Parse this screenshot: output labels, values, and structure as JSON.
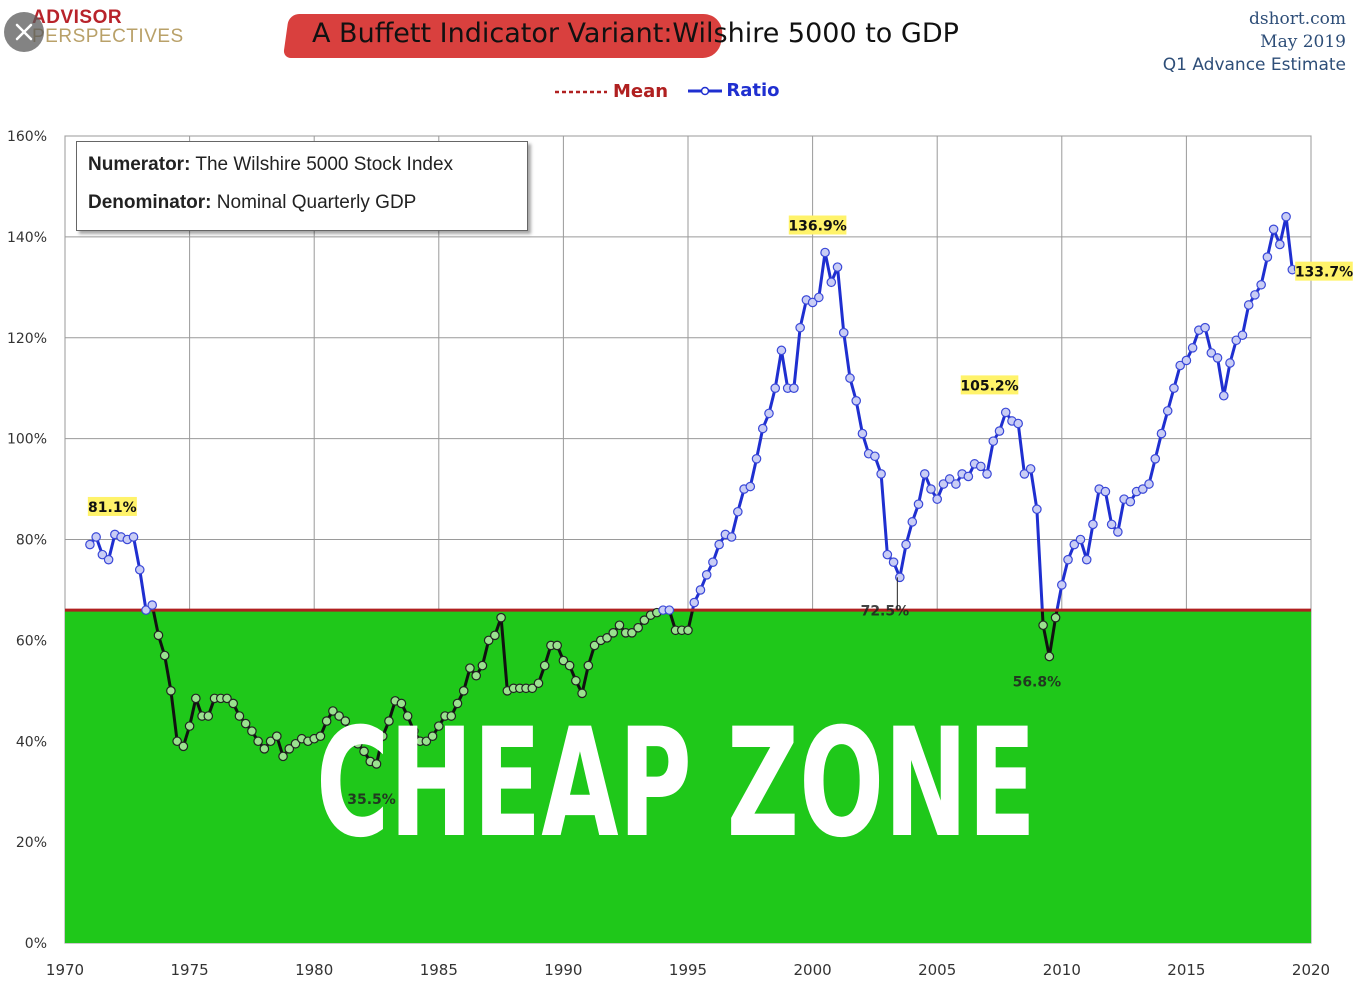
{
  "window": {
    "close_icon": "close-icon"
  },
  "brand": {
    "top": "ADVISOR",
    "bottom": "PERSPECTIVES",
    "accent": "#b8232a",
    "gold": "#b9a169"
  },
  "source": {
    "site": "dshort.com",
    "date": "May 2019",
    "note": "Q1 Advance Estimate"
  },
  "chart_data": {
    "type": "line",
    "title_part1": "A Buffett Indicator Variant:",
    "title_part2": "Wilshire 5000 to GDP",
    "legend": [
      {
        "key": "mean",
        "label": "Mean",
        "color": "#b02020"
      },
      {
        "key": "ratio",
        "label": "Ratio",
        "color": "#1f2fd0"
      }
    ],
    "legend_position": "top-center",
    "info_box": {
      "numerator_label": "Numerator:",
      "numerator_text": "The Wilshire 5000 Stock Index",
      "denominator_label": "Denominator:",
      "denominator_text": "Nominal Quarterly GDP"
    },
    "xlim": [
      1970,
      2020
    ],
    "ylim": [
      0,
      160
    ],
    "x_ticks": [
      1970,
      1975,
      1980,
      1985,
      1990,
      1995,
      2000,
      2005,
      2010,
      2015,
      2020
    ],
    "y_ticks": [
      0,
      20,
      40,
      60,
      80,
      100,
      120,
      140,
      160
    ],
    "y_tick_labels": [
      "0%",
      "20%",
      "40%",
      "60%",
      "80%",
      "100%",
      "120%",
      "140%",
      "160%"
    ],
    "grid": true,
    "mean": 66,
    "zone_label": "CHEAP ZONE",
    "zone_color": "#1fc81a",
    "zone_top": 66,
    "ratio_series": [
      [
        1971.0,
        79
      ],
      [
        1971.25,
        80.5
      ],
      [
        1971.5,
        77
      ],
      [
        1971.75,
        76
      ],
      [
        1972.0,
        81
      ],
      [
        1972.25,
        80.5
      ],
      [
        1972.5,
        80
      ],
      [
        1972.75,
        80.5
      ],
      [
        1973.0,
        74
      ],
      [
        1973.25,
        66
      ],
      [
        1973.5,
        67
      ],
      [
        1973.75,
        61
      ],
      [
        1974.0,
        57
      ],
      [
        1974.25,
        50
      ],
      [
        1974.5,
        40
      ],
      [
        1974.75,
        39
      ],
      [
        1975.0,
        43
      ],
      [
        1975.25,
        48.5
      ],
      [
        1975.5,
        45
      ],
      [
        1975.75,
        45
      ],
      [
        1976.0,
        48.5
      ],
      [
        1976.25,
        48.5
      ],
      [
        1976.5,
        48.5
      ],
      [
        1976.75,
        47.5
      ],
      [
        1977.0,
        45
      ],
      [
        1977.25,
        43.5
      ],
      [
        1977.5,
        42
      ],
      [
        1977.75,
        40
      ],
      [
        1978.0,
        38.5
      ],
      [
        1978.25,
        40
      ],
      [
        1978.5,
        41
      ],
      [
        1978.75,
        37
      ],
      [
        1979.0,
        38.5
      ],
      [
        1979.25,
        39.5
      ],
      [
        1979.5,
        40.5
      ],
      [
        1979.75,
        40
      ],
      [
        1980.0,
        40.5
      ],
      [
        1980.25,
        41
      ],
      [
        1980.5,
        44
      ],
      [
        1980.75,
        46
      ],
      [
        1981.0,
        45
      ],
      [
        1981.25,
        44
      ],
      [
        1981.5,
        40
      ],
      [
        1981.75,
        39.5
      ],
      [
        1982.0,
        38
      ],
      [
        1982.25,
        36
      ],
      [
        1982.5,
        35.5
      ],
      [
        1982.75,
        41
      ],
      [
        1983.0,
        44
      ],
      [
        1983.25,
        48
      ],
      [
        1983.5,
        47.5
      ],
      [
        1983.75,
        45
      ],
      [
        1984.0,
        42
      ],
      [
        1984.25,
        40
      ],
      [
        1984.5,
        40
      ],
      [
        1984.75,
        41
      ],
      [
        1985.0,
        43
      ],
      [
        1985.25,
        45
      ],
      [
        1985.5,
        45
      ],
      [
        1985.75,
        47.5
      ],
      [
        1986.0,
        50
      ],
      [
        1986.25,
        54.5
      ],
      [
        1986.5,
        53
      ],
      [
        1986.75,
        55
      ],
      [
        1987.0,
        60
      ],
      [
        1987.25,
        61
      ],
      [
        1987.5,
        64.5
      ],
      [
        1987.75,
        50
      ],
      [
        1988.0,
        50.5
      ],
      [
        1988.25,
        50.5
      ],
      [
        1988.5,
        50.5
      ],
      [
        1988.75,
        50.5
      ],
      [
        1989.0,
        51.5
      ],
      [
        1989.25,
        55
      ],
      [
        1989.5,
        59
      ],
      [
        1989.75,
        59
      ],
      [
        1990.0,
        56
      ],
      [
        1990.25,
        55
      ],
      [
        1990.5,
        52
      ],
      [
        1990.75,
        49.5
      ],
      [
        1991.0,
        55
      ],
      [
        1991.25,
        59
      ],
      [
        1991.5,
        60
      ],
      [
        1991.75,
        60.5
      ],
      [
        1992.0,
        61.5
      ],
      [
        1992.25,
        63
      ],
      [
        1992.5,
        61.5
      ],
      [
        1992.75,
        61.5
      ],
      [
        1993.0,
        62.5
      ],
      [
        1993.25,
        64
      ],
      [
        1993.5,
        65
      ],
      [
        1993.75,
        65.5
      ],
      [
        1994.0,
        66
      ],
      [
        1994.25,
        66
      ],
      [
        1994.5,
        62
      ],
      [
        1994.75,
        62
      ],
      [
        1995.0,
        62
      ],
      [
        1995.25,
        67.5
      ],
      [
        1995.5,
        70
      ],
      [
        1995.75,
        73
      ],
      [
        1996.0,
        75.5
      ],
      [
        1996.25,
        79
      ],
      [
        1996.5,
        81
      ],
      [
        1996.75,
        80.5
      ],
      [
        1997.0,
        85.5
      ],
      [
        1997.25,
        90
      ],
      [
        1997.5,
        90.5
      ],
      [
        1997.75,
        96
      ],
      [
        1998.0,
        102
      ],
      [
        1998.25,
        105
      ],
      [
        1998.5,
        110
      ],
      [
        1998.75,
        117.5
      ],
      [
        1999.0,
        110
      ],
      [
        1999.25,
        110
      ],
      [
        1999.5,
        122
      ],
      [
        1999.75,
        127.5
      ],
      [
        2000.0,
        127
      ],
      [
        2000.25,
        128
      ],
      [
        2000.5,
        136.9
      ],
      [
        2000.75,
        131
      ],
      [
        2001.0,
        134
      ],
      [
        2001.25,
        121
      ],
      [
        2001.5,
        112
      ],
      [
        2001.75,
        107.5
      ],
      [
        2002.0,
        101
      ],
      [
        2002.25,
        97
      ],
      [
        2002.5,
        96.5
      ],
      [
        2002.75,
        93
      ],
      [
        2003.0,
        77
      ],
      [
        2003.25,
        75.5
      ],
      [
        2003.5,
        72.5
      ],
      [
        2003.75,
        79
      ],
      [
        2004.0,
        83.5
      ],
      [
        2004.25,
        87
      ],
      [
        2004.5,
        93
      ],
      [
        2004.75,
        90
      ],
      [
        2005.0,
        88
      ],
      [
        2005.25,
        91
      ],
      [
        2005.5,
        92
      ],
      [
        2005.75,
        91
      ],
      [
        2006.0,
        93
      ],
      [
        2006.25,
        92.5
      ],
      [
        2006.5,
        95
      ],
      [
        2006.75,
        94.5
      ],
      [
        2007.0,
        93
      ],
      [
        2007.25,
        99.5
      ],
      [
        2007.5,
        101.5
      ],
      [
        2007.75,
        105.2
      ],
      [
        2008.0,
        103.5
      ],
      [
        2008.25,
        103
      ],
      [
        2008.5,
        93
      ],
      [
        2008.75,
        94
      ],
      [
        2009.0,
        86
      ],
      [
        2009.25,
        63
      ],
      [
        2009.5,
        56.8
      ],
      [
        2009.75,
        64.5
      ],
      [
        2010.0,
        71
      ],
      [
        2010.25,
        76
      ],
      [
        2010.5,
        79
      ],
      [
        2010.75,
        80
      ],
      [
        2011.0,
        76
      ],
      [
        2011.25,
        83
      ],
      [
        2011.5,
        90
      ],
      [
        2011.75,
        89.5
      ],
      [
        2012.0,
        83
      ],
      [
        2012.25,
        81.5
      ],
      [
        2012.5,
        88
      ],
      [
        2012.75,
        87.5
      ],
      [
        2013.0,
        89.5
      ],
      [
        2013.25,
        90
      ],
      [
        2013.5,
        91
      ],
      [
        2013.75,
        96
      ],
      [
        2014.0,
        101
      ],
      [
        2014.25,
        105.5
      ],
      [
        2014.5,
        110
      ],
      [
        2014.75,
        114.5
      ],
      [
        2015.0,
        115.5
      ],
      [
        2015.25,
        118
      ],
      [
        2015.5,
        121.5
      ],
      [
        2015.75,
        122
      ],
      [
        2016.0,
        117
      ],
      [
        2016.25,
        116
      ],
      [
        2016.5,
        108.5
      ],
      [
        2016.75,
        115
      ],
      [
        2017.0,
        119.5
      ],
      [
        2017.25,
        120.5
      ],
      [
        2017.5,
        126.5
      ],
      [
        2017.75,
        128.5
      ],
      [
        2018.0,
        130.5
      ],
      [
        2018.25,
        136
      ],
      [
        2018.5,
        141.5
      ],
      [
        2018.75,
        138.5
      ],
      [
        2019.0,
        144
      ],
      [
        2019.25,
        133.5
      ],
      [
        2019.5,
        133.7
      ],
      [
        2019.75,
        133.7
      ]
    ],
    "annotations": [
      {
        "x": 1971.9,
        "y": 81.1,
        "text": "81.1%",
        "highlight": true
      },
      {
        "x": 2000.2,
        "y": 136.9,
        "text": "136.9%",
        "highlight": true
      },
      {
        "x": 2007.1,
        "y": 105.2,
        "text": "105.2%",
        "highlight": true
      },
      {
        "x": 2020.2,
        "y": 133.7,
        "text": "133.7%",
        "highlight": true
      },
      {
        "x": 2002.9,
        "y": 72.5,
        "text": "72.5%",
        "highlight": false
      },
      {
        "x": 2009.0,
        "y": 56.8,
        "text": "56.8%",
        "highlight": false
      },
      {
        "x": 1982.3,
        "y": 35.5,
        "text": "35.5%",
        "highlight": false
      }
    ]
  }
}
